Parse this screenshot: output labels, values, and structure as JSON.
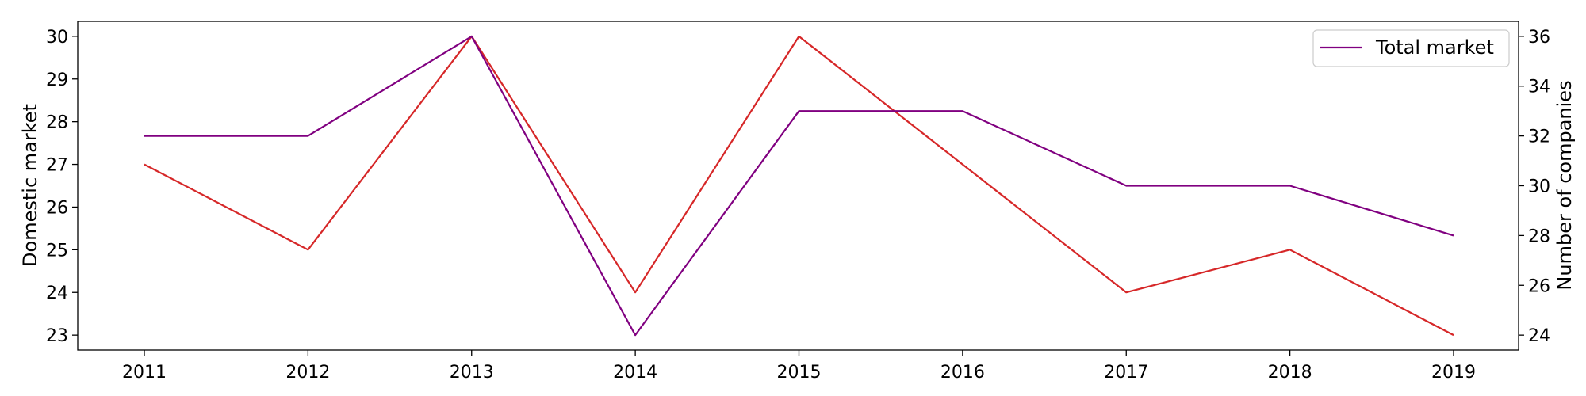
{
  "chart_data": {
    "type": "line",
    "x": [
      "2011",
      "2012",
      "2013",
      "2014",
      "2015",
      "2016",
      "2017",
      "2018",
      "2019"
    ],
    "series": [
      {
        "name": "",
        "axis": "left",
        "color": "#d62728",
        "values": [
          27,
          25,
          30,
          24,
          30,
          27,
          24,
          25,
          23
        ]
      },
      {
        "name": "Total market",
        "axis": "right",
        "color": "#800080",
        "values": [
          32,
          32,
          36,
          24,
          33,
          33,
          30,
          30,
          28
        ]
      }
    ],
    "ylabel_left": "Domestic market",
    "ylabel_right": "Number of companies",
    "ylim_left": [
      22.65,
      30.35
    ],
    "yticks_left": [
      23,
      24,
      25,
      26,
      27,
      28,
      29,
      30
    ],
    "ylim_right": [
      23.4,
      36.6
    ],
    "yticks_right": [
      24,
      26,
      28,
      30,
      32,
      34,
      36
    ],
    "grid": false,
    "legend_position": "top-right"
  }
}
